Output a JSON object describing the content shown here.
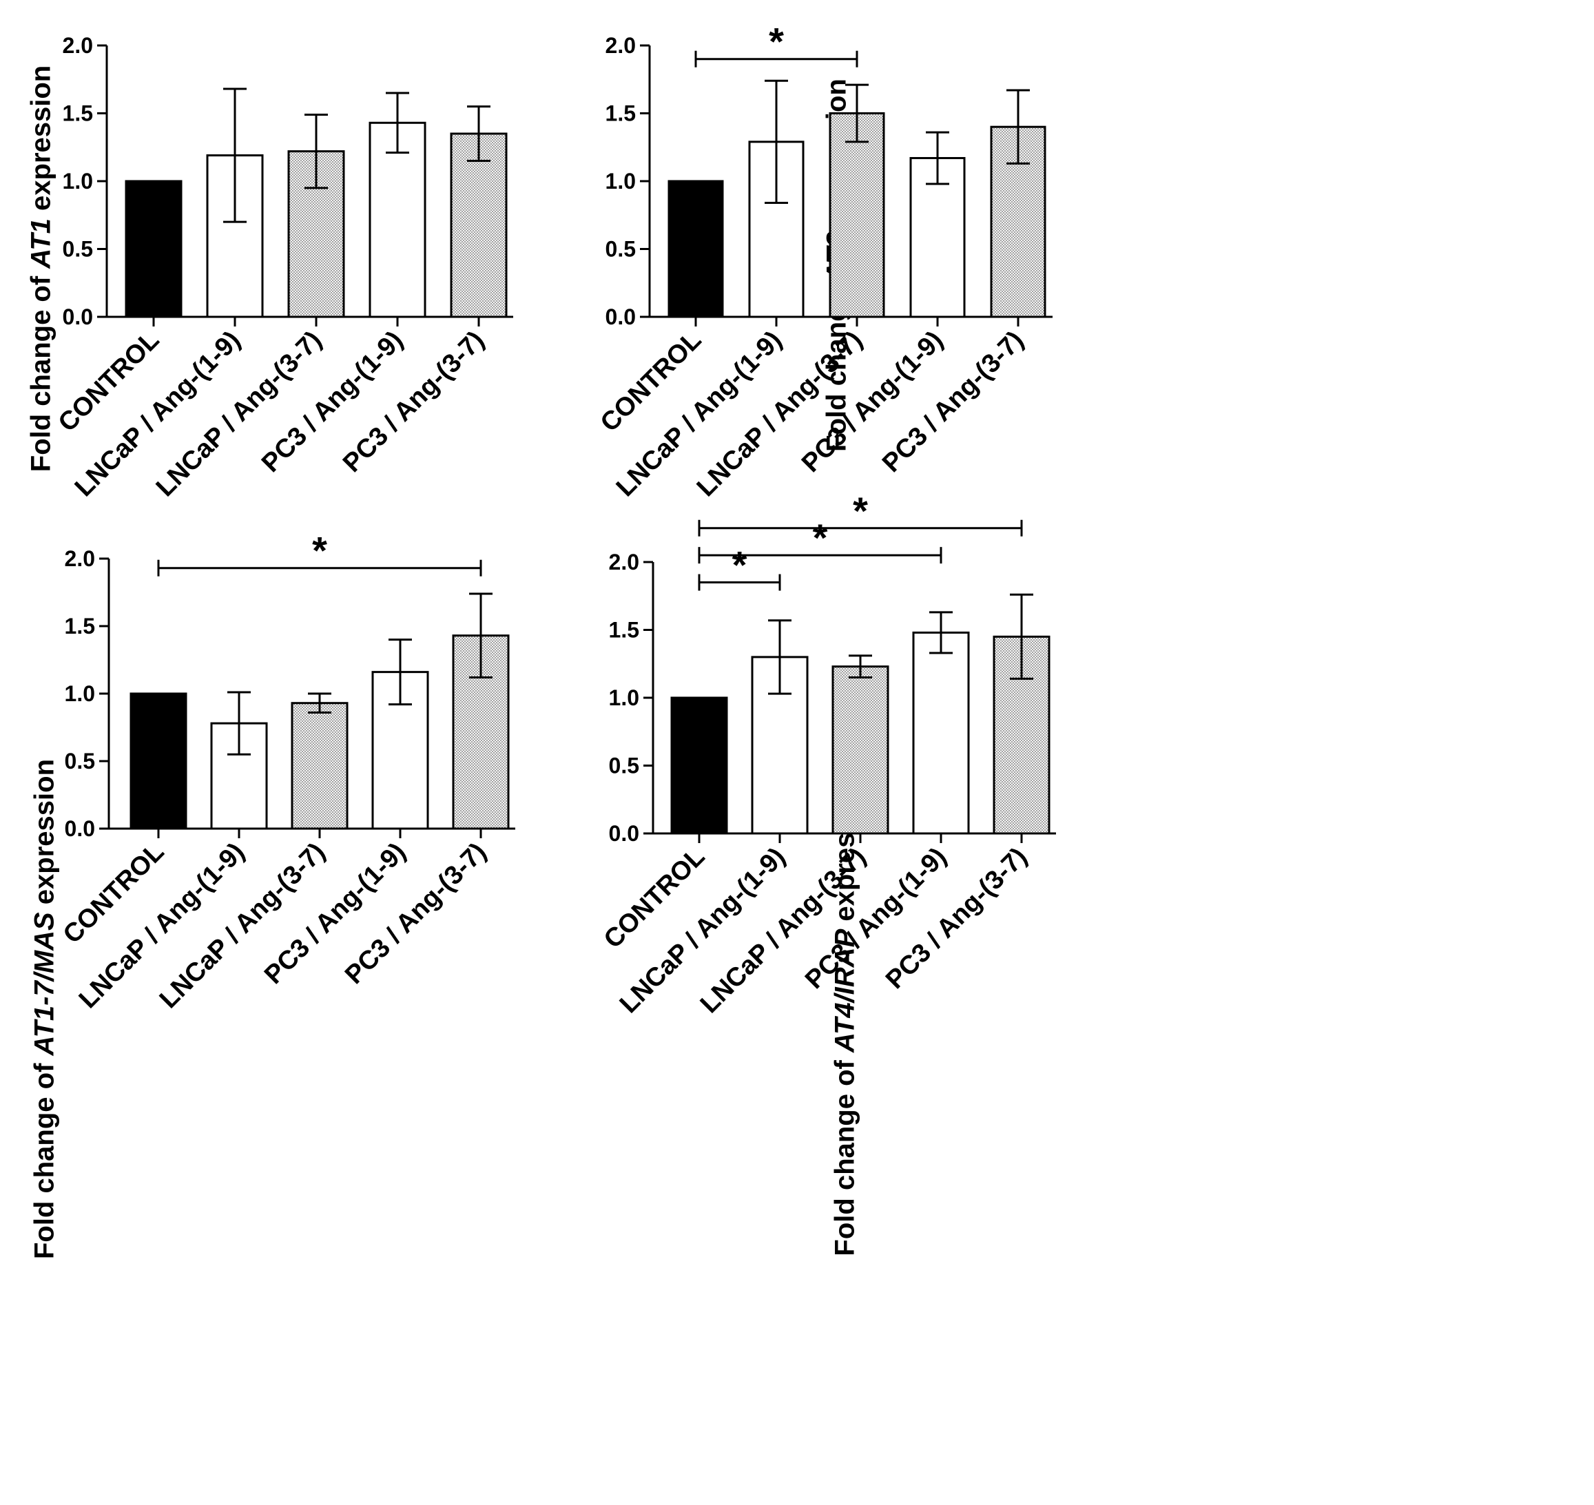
{
  "figure": {
    "colors": {
      "control": "#000000",
      "open": "#ffffff",
      "dotted": "#e6e6e6",
      "axis": "#000000"
    },
    "panels": [
      {
        "ylabel_pre": "Fold change of ",
        "ylabel_gene": "AT1",
        "ylabel_post": " expression"
      },
      {
        "ylabel_pre": "Fold change ",
        "ylabel_gene": "AT2",
        "ylabel_post": " expression"
      },
      {
        "ylabel_pre": "Fold change of ",
        "ylabel_gene": "AT1-7/MAS",
        "ylabel_post": " expression"
      },
      {
        "ylabel_pre": "Fold change of ",
        "ylabel_gene": "AT4/IRAP",
        "ylabel_post": " expression"
      }
    ]
  },
  "chart_data": [
    {
      "type": "bar",
      "ylabel": "Fold change of AT1 expression",
      "categories": [
        "CONTROL",
        "LNCaP / Ang-(1-9)",
        "LNCaP / Ang-(3-7)",
        "PC3 / Ang-(1-9)",
        "PC3 / Ang-(3-7)"
      ],
      "values": [
        1.0,
        1.19,
        1.22,
        1.43,
        1.35
      ],
      "errors": [
        0,
        0.49,
        0.27,
        0.22,
        0.2
      ],
      "fills": [
        "control",
        "open",
        "dotted",
        "open",
        "dotted"
      ],
      "ylim": [
        0,
        2.0
      ],
      "yticks": [
        "0.0",
        "0.5",
        "1.0",
        "1.5",
        "2.0"
      ],
      "significance": []
    },
    {
      "type": "bar",
      "ylabel": "Fold change AT2 expression",
      "categories": [
        "CONTROL",
        "LNCaP / Ang-(1-9)",
        "LNCaP / Ang-(3-7)",
        "PC3 / Ang-(1-9)",
        "PC3 / Ang-(3-7)"
      ],
      "values": [
        1.0,
        1.29,
        1.5,
        1.17,
        1.4
      ],
      "errors": [
        0,
        0.45,
        0.21,
        0.19,
        0.27
      ],
      "fills": [
        "control",
        "open",
        "dotted",
        "open",
        "dotted"
      ],
      "ylim": [
        0,
        2.0
      ],
      "yticks": [
        "0.0",
        "0.5",
        "1.0",
        "1.5",
        "2.0"
      ],
      "significance": [
        {
          "from": 0,
          "to": 2,
          "y": 1.9,
          "label": "*"
        }
      ]
    },
    {
      "type": "bar",
      "ylabel": "Fold change of AT1-7/MAS expression",
      "categories": [
        "CONTROL",
        "LNCaP / Ang-(1-9)",
        "LNCaP / Ang-(3-7)",
        "PC3 / Ang-(1-9)",
        "PC3 / Ang-(3-7)"
      ],
      "values": [
        1.0,
        0.78,
        0.93,
        1.16,
        1.43
      ],
      "errors": [
        0,
        0.23,
        0.07,
        0.24,
        0.31
      ],
      "fills": [
        "control",
        "open",
        "dotted",
        "open",
        "dotted"
      ],
      "ylim": [
        0,
        2.0
      ],
      "yticks": [
        "0.0",
        "0.5",
        "1.0",
        "1.5",
        "2.0"
      ],
      "significance": [
        {
          "from": 0,
          "to": 4,
          "y": 1.93,
          "label": "*"
        }
      ]
    },
    {
      "type": "bar",
      "ylabel": "Fold change of AT4/IRAP expression",
      "categories": [
        "CONTROL",
        "LNCaP / Ang-(1-9)",
        "LNCaP / Ang-(3-7)",
        "PC3 / Ang-(1-9)",
        "PC3 / Ang-(3-7)"
      ],
      "values": [
        1.0,
        1.3,
        1.23,
        1.48,
        1.45
      ],
      "errors": [
        0,
        0.27,
        0.08,
        0.15,
        0.31
      ],
      "fills": [
        "control",
        "open",
        "dotted",
        "open",
        "dotted"
      ],
      "ylim": [
        0,
        2.0
      ],
      "yticks": [
        "0.0",
        "0.5",
        "1.0",
        "1.5",
        "2.0"
      ],
      "significance": [
        {
          "from": 0,
          "to": 1,
          "y": 1.85,
          "label": "*"
        },
        {
          "from": 0,
          "to": 3,
          "y": 2.05,
          "label": "*"
        },
        {
          "from": 0,
          "to": 4,
          "y": 2.25,
          "label": "*"
        }
      ]
    }
  ]
}
